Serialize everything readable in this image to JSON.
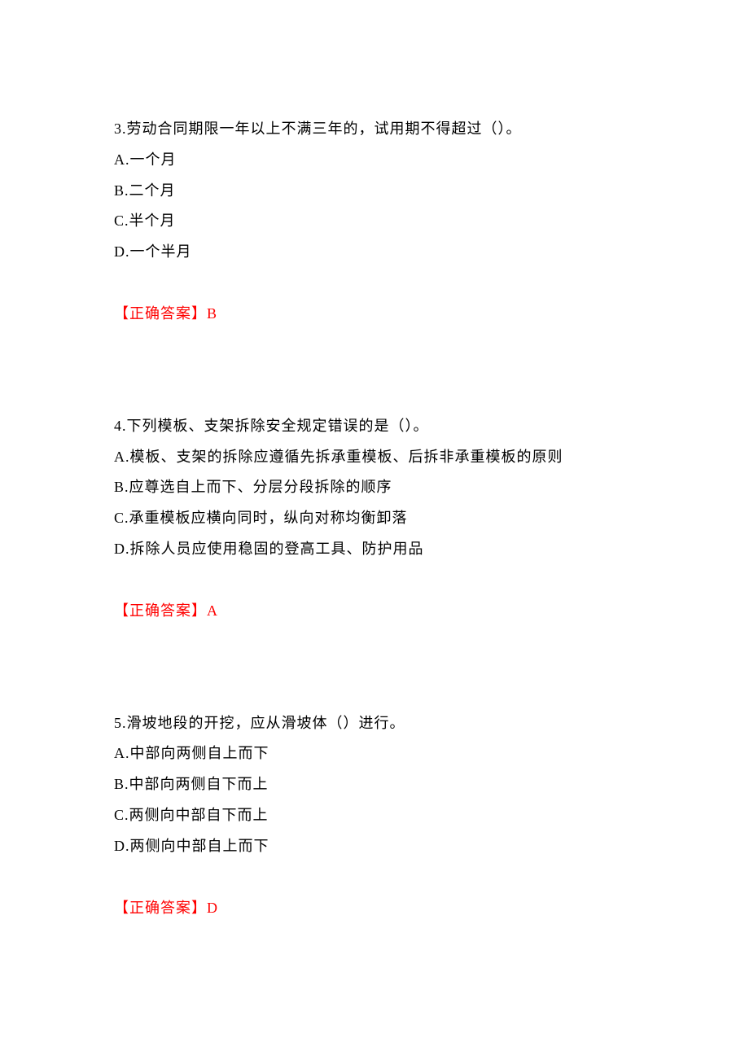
{
  "document": {
    "background_color": "#ffffff",
    "text_color": "#000000",
    "answer_color": "#ff0000",
    "font_size": 18,
    "line_height": 2.1,
    "questions": [
      {
        "number": "3",
        "stem": "3.劳动合同期限一年以上不满三年的，试用期不得超过（）。",
        "options": {
          "A": "A.一个月",
          "B": "B.二个月",
          "C": "C.半个月",
          "D": "D.一个半月"
        },
        "answer_label": "【正确答案】",
        "answer_value": "B"
      },
      {
        "number": "4",
        "stem": "4.下列模板、支架拆除安全规定错误的是（）。",
        "options": {
          "A": "A.模板、支架的拆除应遵循先拆承重模板、后拆非承重模板的原则",
          "B": "B.应尊选自上而下、分层分段拆除的顺序",
          "C": "C.承重模板应横向同时，纵向对称均衡卸落",
          "D": "D.拆除人员应使用稳固的登高工具、防护用品"
        },
        "answer_label": "【正确答案】",
        "answer_value": "A"
      },
      {
        "number": "5",
        "stem": "5.滑坡地段的开挖，应从滑坡体（）进行。",
        "options": {
          "A": "A.中部向两侧自上而下",
          "B": "B.中部向两侧自下而上",
          "C": "C.两侧向中部自下而上",
          "D": "D.两侧向中部自上而下"
        },
        "answer_label": "【正确答案】",
        "answer_value": "D"
      }
    ]
  }
}
